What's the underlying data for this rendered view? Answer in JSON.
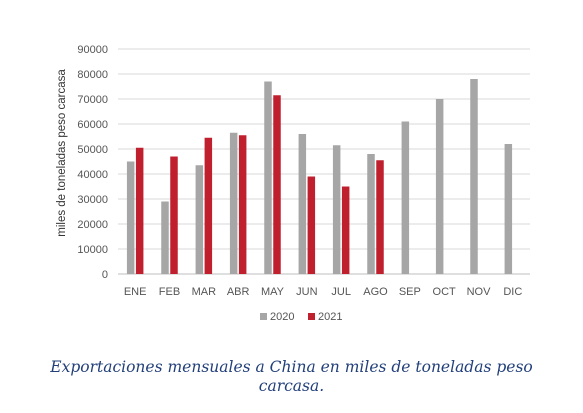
{
  "chart_data": {
    "type": "bar",
    "title": "",
    "xlabel": "",
    "ylabel": "miles de toneladas peso carcasa",
    "ylim": [
      0,
      90000
    ],
    "yticks": [
      0,
      10000,
      20000,
      30000,
      40000,
      50000,
      60000,
      70000,
      80000,
      90000
    ],
    "grid": "horizontal",
    "legend_position": "bottom",
    "categories": [
      "ENE",
      "FEB",
      "MAR",
      "ABR",
      "MAY",
      "JUN",
      "JUL",
      "AGO",
      "SEP",
      "OCT",
      "NOV",
      "DIC"
    ],
    "series": [
      {
        "name": "2020",
        "color": "#a6a6a6",
        "values": [
          45000,
          29000,
          43500,
          56500,
          77000,
          56000,
          51500,
          48000,
          61000,
          70000,
          78000,
          52000
        ]
      },
      {
        "name": "2021",
        "color": "#c0202e",
        "values": [
          50500,
          47000,
          54500,
          55500,
          71500,
          39000,
          35000,
          45500,
          null,
          null,
          null,
          null
        ]
      }
    ]
  },
  "caption": "Exportaciones mensuales a China en miles de toneladas peso carcasa."
}
